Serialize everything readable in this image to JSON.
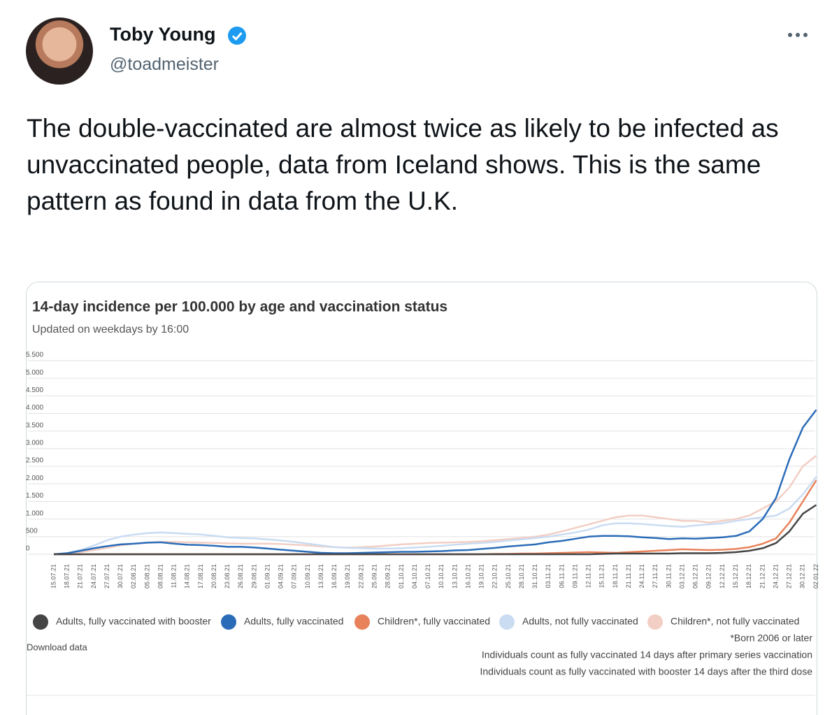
{
  "tweet": {
    "author": "Toby Young",
    "handle": "@toadmeister",
    "text": "The double-vaccinated are almost twice as likely to be infected as unvaccinated people, data from Iceland shows. This is the same pattern as found in data from the U.K."
  },
  "chart_data": {
    "type": "line",
    "title": "14-day incidence per 100.000 by age and vaccination status",
    "subtitle": "Updated on weekdays by 16:00",
    "categories": [
      "15.07.21",
      "18.07.21",
      "21.07.21",
      "24.07.21",
      "27.07.21",
      "30.07.21",
      "02.08.21",
      "05.08.21",
      "08.08.21",
      "11.08.21",
      "14.08.21",
      "17.08.21",
      "20.08.21",
      "23.08.21",
      "26.08.21",
      "29.08.21",
      "01.09.21",
      "04.09.21",
      "07.09.21",
      "10.09.21",
      "13.09.21",
      "16.09.21",
      "19.09.21",
      "22.09.21",
      "25.09.21",
      "28.09.21",
      "01.10.21",
      "04.10.21",
      "07.10.21",
      "10.10.21",
      "13.10.21",
      "16.10.21",
      "19.10.21",
      "22.10.21",
      "25.10.21",
      "28.10.21",
      "31.10.21",
      "03.11.21",
      "06.11.21",
      "09.11.21",
      "12.11.21",
      "15.11.21",
      "18.11.21",
      "21.11.21",
      "24.11.21",
      "27.11.21",
      "30.11.21",
      "03.12.21",
      "06.12.21",
      "09.12.21",
      "12.12.21",
      "15.12.21",
      "18.12.21",
      "21.12.21",
      "24.12.21",
      "27.12.21",
      "30.12.21",
      "02.01.22"
    ],
    "series": [
      {
        "name": "Adults, fully vaccinated with booster",
        "color": "#454545",
        "values": [
          0,
          0,
          0,
          0,
          0,
          0,
          0,
          0,
          0,
          0,
          0,
          0,
          0,
          0,
          0,
          0,
          0,
          0,
          0,
          0,
          0,
          0,
          0,
          0,
          0,
          0,
          0,
          0,
          0,
          0,
          0,
          0,
          0,
          0,
          0,
          0,
          0,
          0,
          0,
          0,
          0,
          10,
          20,
          20,
          20,
          20,
          20,
          30,
          30,
          30,
          40,
          60,
          100,
          170,
          320,
          650,
          1150,
          1400
        ]
      },
      {
        "name": "Adults, fully vaccinated",
        "color": "#2b6cb8",
        "values": [
          0,
          30,
          100,
          170,
          230,
          280,
          300,
          330,
          340,
          300,
          270,
          260,
          240,
          210,
          210,
          190,
          160,
          130,
          100,
          70,
          40,
          30,
          30,
          40,
          50,
          60,
          70,
          70,
          80,
          90,
          110,
          120,
          150,
          180,
          220,
          250,
          280,
          340,
          380,
          440,
          500,
          520,
          520,
          510,
          480,
          460,
          430,
          450,
          440,
          460,
          480,
          520,
          650,
          1000,
          1600,
          2700,
          3600,
          4100
        ]
      },
      {
        "name": "Children*, fully vaccinated",
        "color": "#e8825a",
        "values": [
          0,
          0,
          0,
          0,
          0,
          0,
          0,
          0,
          0,
          0,
          0,
          0,
          0,
          0,
          0,
          0,
          0,
          0,
          0,
          0,
          0,
          0,
          0,
          0,
          0,
          0,
          0,
          0,
          0,
          0,
          0,
          0,
          0,
          10,
          10,
          20,
          20,
          30,
          40,
          50,
          60,
          50,
          40,
          60,
          80,
          100,
          120,
          140,
          130,
          120,
          130,
          150,
          200,
          300,
          450,
          900,
          1500,
          2100
        ]
      },
      {
        "name": "Adults, not fully vaccinated",
        "color": "#c9dcf2",
        "values": [
          0,
          30,
          120,
          250,
          400,
          500,
          560,
          600,
          620,
          600,
          580,
          560,
          520,
          480,
          460,
          450,
          420,
          390,
          350,
          300,
          250,
          200,
          180,
          170,
          160,
          160,
          170,
          190,
          210,
          240,
          270,
          300,
          320,
          350,
          390,
          420,
          460,
          500,
          560,
          620,
          700,
          820,
          880,
          880,
          860,
          830,
          800,
          780,
          820,
          850,
          880,
          950,
          1000,
          1050,
          1100,
          1300,
          1700,
          2200
        ]
      },
      {
        "name": "Children*, not fully vaccinated",
        "color": "#f2cfc4",
        "values": [
          0,
          20,
          60,
          120,
          180,
          250,
          300,
          330,
          350,
          350,
          340,
          330,
          320,
          310,
          300,
          300,
          300,
          290,
          270,
          250,
          220,
          200,
          190,
          200,
          220,
          250,
          280,
          300,
          320,
          330,
          340,
          350,
          370,
          400,
          430,
          460,
          500,
          560,
          650,
          750,
          850,
          950,
          1050,
          1100,
          1100,
          1050,
          1000,
          950,
          950,
          900,
          950,
          1000,
          1100,
          1300,
          1500,
          1900,
          2500,
          2800
        ]
      }
    ],
    "ylim": [
      0,
      5500
    ],
    "yticks": [
      0,
      500,
      {
        "value": 1000,
        "label": "1.000"
      },
      {
        "value": 1500,
        "label": "1.500"
      },
      {
        "value": 2000,
        "label": "2.000"
      },
      {
        "value": 2500,
        "label": "2.500"
      },
      {
        "value": 3000,
        "label": "3.000"
      },
      {
        "value": 3500,
        "label": "3.500"
      },
      {
        "value": 4000,
        "label": "4.000"
      },
      {
        "value": 4500,
        "label": "4.500"
      },
      {
        "value": 5000,
        "label": "5.000"
      },
      {
        "value": 5500,
        "label": "5.500"
      }
    ],
    "grid": true,
    "notes": [
      "*Born 2006 or later",
      "Individuals count as fully vaccinated 14 days after primary series vaccination",
      "Individuals count as fully vaccinated with booster 14 days after the third dose"
    ],
    "link": "Download data"
  }
}
